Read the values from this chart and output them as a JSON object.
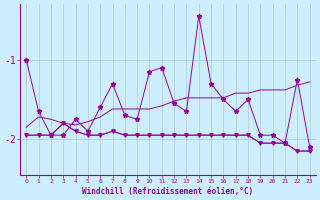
{
  "xlabel": "Windchill (Refroidissement éolien,°C)",
  "x_values": [
    0,
    1,
    2,
    3,
    4,
    5,
    6,
    7,
    8,
    9,
    10,
    11,
    12,
    13,
    14,
    15,
    16,
    17,
    18,
    19,
    20,
    21,
    22,
    23
  ],
  "series": [
    [
      -1.0,
      -1.65,
      -1.95,
      -1.95,
      -1.75,
      -1.9,
      -1.6,
      -1.3,
      -1.7,
      -1.75,
      -1.15,
      -1.1,
      -1.55,
      -1.65,
      -0.45,
      -1.3,
      -1.5,
      -1.65,
      -1.5,
      -1.95,
      -1.95,
      -2.05,
      -1.25,
      -2.1
    ],
    [
      -1.95,
      -1.95,
      -1.95,
      -1.8,
      -1.9,
      -1.95,
      -1.95,
      -1.9,
      -1.95,
      -1.95,
      -1.95,
      -1.95,
      -1.95,
      -1.95,
      -1.95,
      -1.95,
      -1.95,
      -1.95,
      -1.95,
      -2.05,
      -2.05,
      -2.05,
      -2.15,
      -2.15
    ],
    [
      -1.85,
      -1.72,
      -1.75,
      -1.8,
      -1.82,
      -1.78,
      -1.72,
      -1.62,
      -1.62,
      -1.62,
      -1.62,
      -1.58,
      -1.52,
      -1.48,
      -1.48,
      -1.48,
      -1.48,
      -1.42,
      -1.42,
      -1.38,
      -1.38,
      -1.38,
      -1.32,
      -1.28
    ],
    [
      -1.95,
      -1.95,
      -1.95,
      -1.8,
      -1.9,
      -1.95,
      -1.95,
      -1.9,
      -1.95,
      -1.95,
      -1.95,
      -1.95,
      -1.95,
      -1.95,
      -1.95,
      -1.95,
      -1.95,
      -1.95,
      -1.95,
      -2.05,
      -2.05,
      -2.05,
      -2.15,
      -2.15
    ]
  ],
  "line_color": "#990099",
  "bg_color": "#cceeff",
  "grid_color": "#aacccc",
  "ytick_vals": [
    -2,
    -1
  ],
  "ytick_labels": [
    "-2",
    "-1"
  ],
  "ylim": [
    -2.45,
    -0.3
  ],
  "xlim": [
    -0.5,
    23.5
  ],
  "figsize": [
    3.2,
    2.0
  ],
  "dpi": 100
}
